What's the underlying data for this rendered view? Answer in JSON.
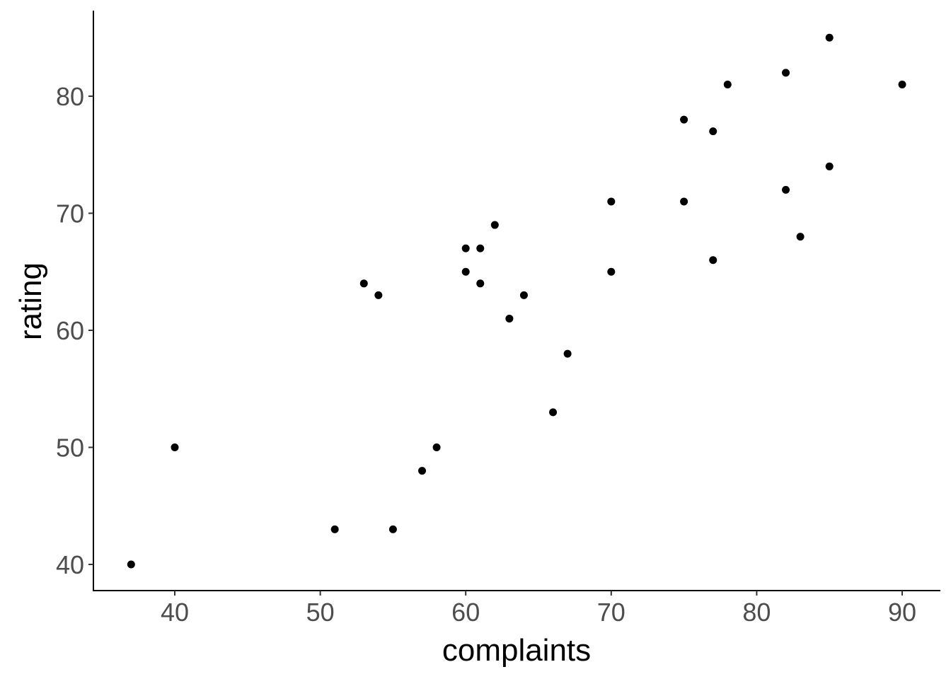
{
  "chart_data": {
    "type": "scatter",
    "title": "",
    "xlabel": "complaints",
    "ylabel": "rating",
    "xlim": [
      34.5,
      92.5
    ],
    "ylim": [
      37.8,
      87.3
    ],
    "xticks": [
      40,
      50,
      60,
      70,
      80,
      90
    ],
    "yticks": [
      40,
      50,
      60,
      70,
      80
    ],
    "grid": false,
    "point_color": "#000000",
    "points": {
      "x": [
        51,
        64,
        70,
        63,
        78,
        55,
        67,
        75,
        82,
        61,
        53,
        60,
        62,
        83,
        77,
        90,
        85,
        60,
        70,
        58,
        40,
        61,
        66,
        37,
        54,
        77,
        75,
        57,
        85,
        82
      ],
      "y": [
        43,
        63,
        71,
        61,
        81,
        43,
        58,
        71,
        72,
        67,
        64,
        67,
        69,
        68,
        77,
        81,
        74,
        65,
        65,
        50,
        50,
        64,
        53,
        40,
        63,
        66,
        78,
        48,
        85,
        82
      ]
    }
  }
}
